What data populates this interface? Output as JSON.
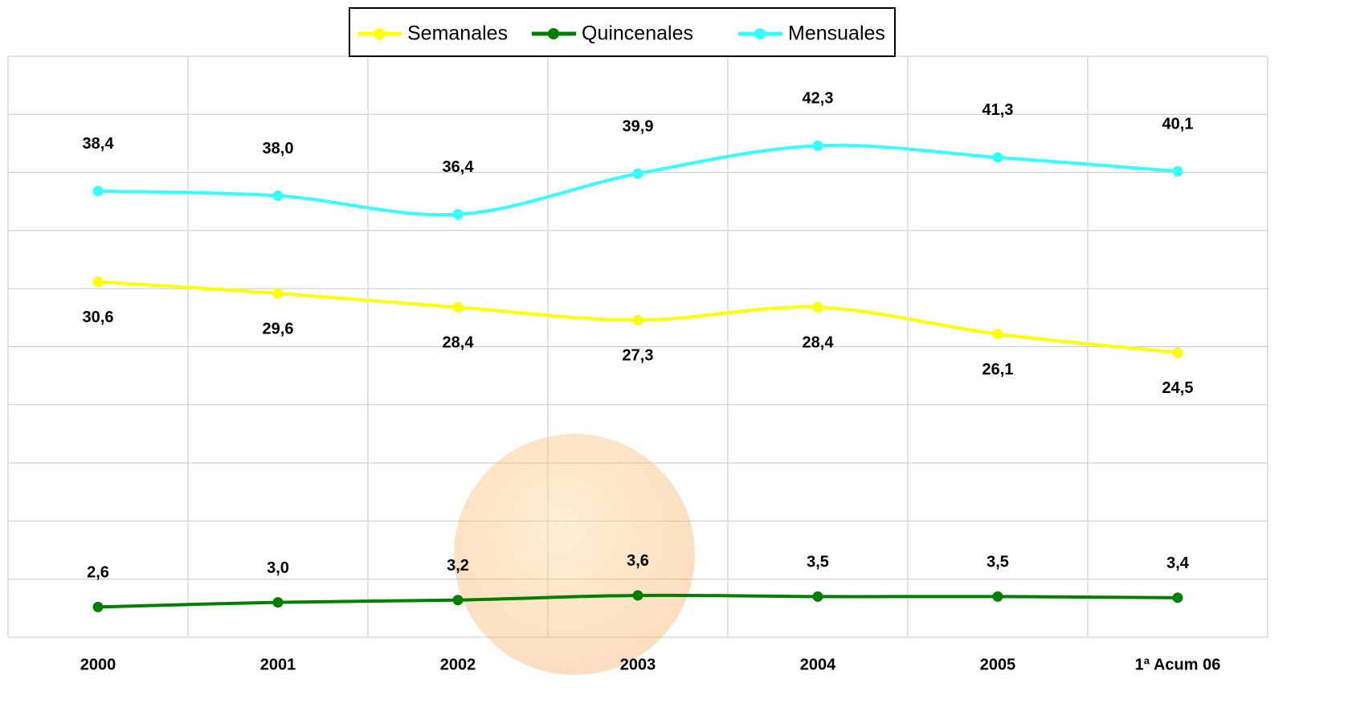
{
  "chart_data": {
    "type": "line",
    "categories": [
      "2000",
      "2001",
      "2002",
      "2003",
      "2004",
      "2005",
      "1ª Acum 06"
    ],
    "series": [
      {
        "name": "Semanales",
        "color": "#ffff00",
        "values": [
          30.6,
          29.6,
          28.4,
          27.3,
          28.4,
          26.1,
          24.5
        ],
        "value_labels": [
          "30,6",
          "29,6",
          "28,4",
          "27,3",
          "28,4",
          "26,1",
          "24,5"
        ]
      },
      {
        "name": "Quincenales",
        "color": "#008000",
        "values": [
          2.6,
          3.0,
          3.2,
          3.6,
          3.5,
          3.5,
          3.4
        ],
        "value_labels": [
          "2,6",
          "3,0",
          "3,2",
          "3,6",
          "3,5",
          "3,5",
          "3,4"
        ]
      },
      {
        "name": "Mensuales",
        "color": "#33ffff",
        "values": [
          38.4,
          38.0,
          36.4,
          39.9,
          42.3,
          41.3,
          40.1
        ],
        "value_labels": [
          "38,4",
          "38,0",
          "36,4",
          "39,9",
          "42,3",
          "41,3",
          "40,1"
        ]
      }
    ],
    "ylim": [
      0,
      50
    ],
    "yticks": [
      0,
      5,
      10,
      15,
      20,
      25,
      30,
      35,
      40,
      45,
      50
    ],
    "grid": true
  }
}
